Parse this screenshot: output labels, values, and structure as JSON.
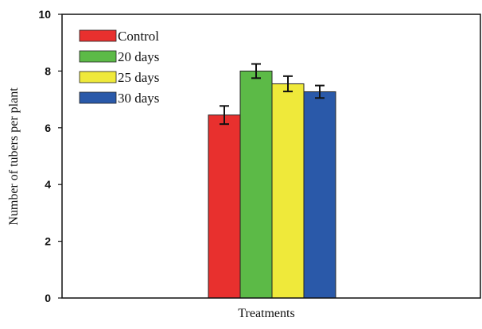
{
  "chart_data": {
    "type": "bar",
    "xlabel": "Treatments",
    "ylabel": "Number of tubers per plant",
    "ylim": [
      0,
      10
    ],
    "yticks": [
      0,
      2,
      4,
      6,
      8,
      10
    ],
    "legend_position": "top-left",
    "grid": false,
    "series": [
      {
        "name": "Control",
        "value": 6.45,
        "error": 0.32,
        "color": "#e8302e"
      },
      {
        "name": "20 days",
        "value": 8.0,
        "error": 0.25,
        "color": "#5cba47"
      },
      {
        "name": "25 days",
        "value": 7.55,
        "error": 0.27,
        "color": "#efe93a"
      },
      {
        "name": "30 days",
        "value": 7.27,
        "error": 0.22,
        "color": "#2a59a9"
      }
    ]
  }
}
